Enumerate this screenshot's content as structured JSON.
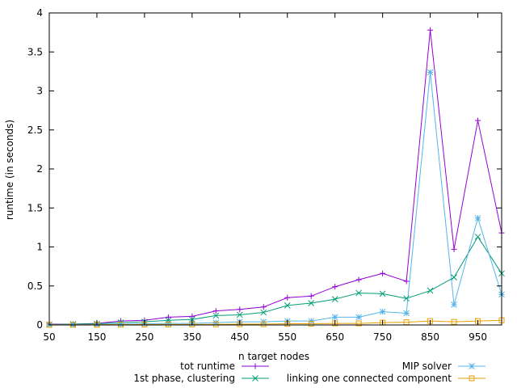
{
  "chart_data": {
    "type": "line",
    "title": "",
    "xlabel": "n target nodes",
    "ylabel": "runtime (in seconds)",
    "xlim": [
      50,
      1000
    ],
    "ylim": [
      0,
      4
    ],
    "x_ticks": [
      50,
      150,
      250,
      350,
      450,
      550,
      650,
      750,
      850,
      950
    ],
    "y_ticks": [
      0,
      0.5,
      1,
      1.5,
      2,
      2.5,
      3,
      3.5,
      4
    ],
    "x_tick_labels": [
      "50",
      "150",
      "250",
      "350",
      "450",
      "550",
      "650",
      "750",
      "850",
      "950"
    ],
    "y_tick_labels": [
      "0",
      "0.5",
      "1",
      "1.5",
      "2",
      "2.5",
      "3",
      "3.5",
      "4"
    ],
    "grid": false,
    "legend_position": "bottom",
    "x": [
      50,
      100,
      150,
      200,
      250,
      300,
      350,
      400,
      450,
      500,
      550,
      600,
      650,
      700,
      750,
      800,
      850,
      900,
      950,
      1000
    ],
    "series": [
      {
        "name": "tot runtime",
        "color": "#9400d3",
        "marker": "plus",
        "values": [
          0.01,
          0.01,
          0.02,
          0.05,
          0.06,
          0.1,
          0.11,
          0.18,
          0.2,
          0.23,
          0.35,
          0.37,
          0.49,
          0.58,
          0.66,
          0.56,
          3.78,
          0.97,
          2.62,
          1.18
        ]
      },
      {
        "name": "1st phase, clustering",
        "color": "#009e73",
        "marker": "cross",
        "values": [
          0.005,
          0.01,
          0.015,
          0.03,
          0.04,
          0.06,
          0.07,
          0.12,
          0.13,
          0.16,
          0.25,
          0.28,
          0.33,
          0.41,
          0.4,
          0.34,
          0.44,
          0.61,
          1.13,
          0.66
        ]
      },
      {
        "name": "MIP solver",
        "color": "#56b4e9",
        "marker": "star",
        "values": [
          0.002,
          0.003,
          0.005,
          0.01,
          0.015,
          0.02,
          0.02,
          0.03,
          0.04,
          0.04,
          0.05,
          0.05,
          0.1,
          0.1,
          0.17,
          0.15,
          3.24,
          0.26,
          1.37,
          0.39
        ]
      },
      {
        "name": "linking one connected component",
        "color": "#e69f00",
        "marker": "square",
        "values": [
          0.001,
          0.002,
          0.003,
          0.004,
          0.005,
          0.006,
          0.007,
          0.008,
          0.01,
          0.01,
          0.015,
          0.015,
          0.02,
          0.02,
          0.03,
          0.035,
          0.05,
          0.04,
          0.05,
          0.06
        ]
      }
    ]
  }
}
